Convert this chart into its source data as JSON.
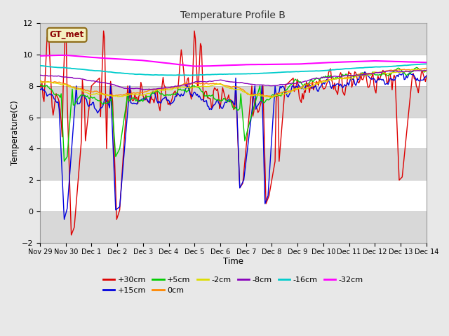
{
  "title": "Temperature Profile B",
  "xlabel": "Time",
  "ylabel": "Temperature(C)",
  "ylim": [
    -2,
    12
  ],
  "yticks": [
    -2,
    0,
    2,
    4,
    6,
    8,
    10,
    12
  ],
  "x_labels": [
    "Nov 29",
    "Nov 30",
    "Dec 1",
    "Dec 2",
    "Dec 3",
    "Dec 4",
    "Dec 5",
    "Dec 6",
    "Dec 7",
    "Dec 8",
    "Dec 9",
    "Dec 10",
    "Dec 11",
    "Dec 12",
    "Dec 13",
    "Dec 14"
  ],
  "series": {
    "+30cm": {
      "color": "#dd0000",
      "lw": 1.0
    },
    "+15cm": {
      "color": "#0000dd",
      "lw": 1.0
    },
    "+5cm": {
      "color": "#00cc00",
      "lw": 1.0
    },
    "0cm": {
      "color": "#ff8800",
      "lw": 1.0
    },
    "-2cm": {
      "color": "#dddd00",
      "lw": 1.0
    },
    "-8cm": {
      "color": "#8800bb",
      "lw": 1.0
    },
    "-16cm": {
      "color": "#00cccc",
      "lw": 1.3
    },
    "-32cm": {
      "color": "#ff00ff",
      "lw": 1.5
    }
  },
  "legend_annotation": "GT_met",
  "bg_color": "#e8e8e8",
  "plot_bg": "#ffffff",
  "stripe_color": "#d8d8d8"
}
